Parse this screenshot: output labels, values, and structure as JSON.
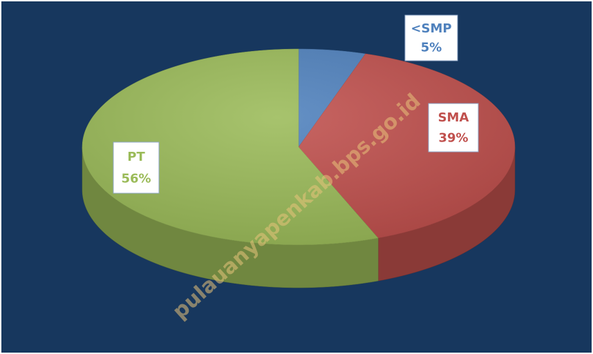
{
  "chart_data": {
    "type": "pie",
    "categories": [
      "<SMP",
      "SMA",
      "PT"
    ],
    "values": [
      5,
      39,
      56
    ],
    "value_labels": [
      "5%",
      "39%",
      "56%"
    ],
    "colors": [
      "#4f81bd",
      "#c0504d",
      "#9bbb59"
    ],
    "watermark": "pulauanyapenkab.bps.go.id"
  }
}
